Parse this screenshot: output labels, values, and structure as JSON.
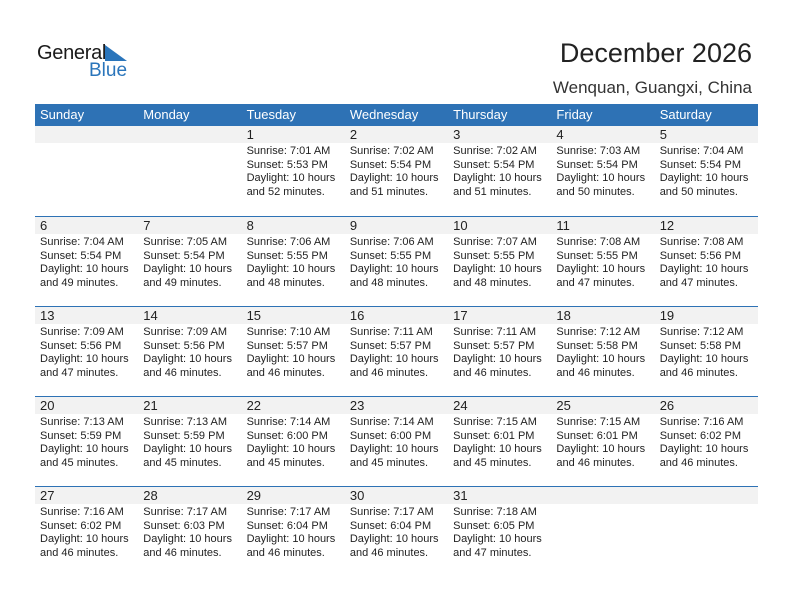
{
  "logo": {
    "line1": "General",
    "line2": "Blue"
  },
  "header": {
    "title": "December 2026",
    "location": "Wenquan, Guangxi, China"
  },
  "colors": {
    "accent": "#2e72b5",
    "band": "#f2f2f2"
  },
  "weekdays": [
    "Sunday",
    "Monday",
    "Tuesday",
    "Wednesday",
    "Thursday",
    "Friday",
    "Saturday"
  ],
  "weeks": [
    [
      null,
      null,
      {
        "day": "1",
        "sunrise": "Sunrise: 7:01 AM",
        "sunset": "Sunset: 5:53 PM",
        "daylight1": "Daylight: 10 hours",
        "daylight2": "and 52 minutes."
      },
      {
        "day": "2",
        "sunrise": "Sunrise: 7:02 AM",
        "sunset": "Sunset: 5:54 PM",
        "daylight1": "Daylight: 10 hours",
        "daylight2": "and 51 minutes."
      },
      {
        "day": "3",
        "sunrise": "Sunrise: 7:02 AM",
        "sunset": "Sunset: 5:54 PM",
        "daylight1": "Daylight: 10 hours",
        "daylight2": "and 51 minutes."
      },
      {
        "day": "4",
        "sunrise": "Sunrise: 7:03 AM",
        "sunset": "Sunset: 5:54 PM",
        "daylight1": "Daylight: 10 hours",
        "daylight2": "and 50 minutes."
      },
      {
        "day": "5",
        "sunrise": "Sunrise: 7:04 AM",
        "sunset": "Sunset: 5:54 PM",
        "daylight1": "Daylight: 10 hours",
        "daylight2": "and 50 minutes."
      }
    ],
    [
      {
        "day": "6",
        "sunrise": "Sunrise: 7:04 AM",
        "sunset": "Sunset: 5:54 PM",
        "daylight1": "Daylight: 10 hours",
        "daylight2": "and 49 minutes."
      },
      {
        "day": "7",
        "sunrise": "Sunrise: 7:05 AM",
        "sunset": "Sunset: 5:54 PM",
        "daylight1": "Daylight: 10 hours",
        "daylight2": "and 49 minutes."
      },
      {
        "day": "8",
        "sunrise": "Sunrise: 7:06 AM",
        "sunset": "Sunset: 5:55 PM",
        "daylight1": "Daylight: 10 hours",
        "daylight2": "and 48 minutes."
      },
      {
        "day": "9",
        "sunrise": "Sunrise: 7:06 AM",
        "sunset": "Sunset: 5:55 PM",
        "daylight1": "Daylight: 10 hours",
        "daylight2": "and 48 minutes."
      },
      {
        "day": "10",
        "sunrise": "Sunrise: 7:07 AM",
        "sunset": "Sunset: 5:55 PM",
        "daylight1": "Daylight: 10 hours",
        "daylight2": "and 48 minutes."
      },
      {
        "day": "11",
        "sunrise": "Sunrise: 7:08 AM",
        "sunset": "Sunset: 5:55 PM",
        "daylight1": "Daylight: 10 hours",
        "daylight2": "and 47 minutes."
      },
      {
        "day": "12",
        "sunrise": "Sunrise: 7:08 AM",
        "sunset": "Sunset: 5:56 PM",
        "daylight1": "Daylight: 10 hours",
        "daylight2": "and 47 minutes."
      }
    ],
    [
      {
        "day": "13",
        "sunrise": "Sunrise: 7:09 AM",
        "sunset": "Sunset: 5:56 PM",
        "daylight1": "Daylight: 10 hours",
        "daylight2": "and 47 minutes."
      },
      {
        "day": "14",
        "sunrise": "Sunrise: 7:09 AM",
        "sunset": "Sunset: 5:56 PM",
        "daylight1": "Daylight: 10 hours",
        "daylight2": "and 46 minutes."
      },
      {
        "day": "15",
        "sunrise": "Sunrise: 7:10 AM",
        "sunset": "Sunset: 5:57 PM",
        "daylight1": "Daylight: 10 hours",
        "daylight2": "and 46 minutes."
      },
      {
        "day": "16",
        "sunrise": "Sunrise: 7:11 AM",
        "sunset": "Sunset: 5:57 PM",
        "daylight1": "Daylight: 10 hours",
        "daylight2": "and 46 minutes."
      },
      {
        "day": "17",
        "sunrise": "Sunrise: 7:11 AM",
        "sunset": "Sunset: 5:57 PM",
        "daylight1": "Daylight: 10 hours",
        "daylight2": "and 46 minutes."
      },
      {
        "day": "18",
        "sunrise": "Sunrise: 7:12 AM",
        "sunset": "Sunset: 5:58 PM",
        "daylight1": "Daylight: 10 hours",
        "daylight2": "and 46 minutes."
      },
      {
        "day": "19",
        "sunrise": "Sunrise: 7:12 AM",
        "sunset": "Sunset: 5:58 PM",
        "daylight1": "Daylight: 10 hours",
        "daylight2": "and 46 minutes."
      }
    ],
    [
      {
        "day": "20",
        "sunrise": "Sunrise: 7:13 AM",
        "sunset": "Sunset: 5:59 PM",
        "daylight1": "Daylight: 10 hours",
        "daylight2": "and 45 minutes."
      },
      {
        "day": "21",
        "sunrise": "Sunrise: 7:13 AM",
        "sunset": "Sunset: 5:59 PM",
        "daylight1": "Daylight: 10 hours",
        "daylight2": "and 45 minutes."
      },
      {
        "day": "22",
        "sunrise": "Sunrise: 7:14 AM",
        "sunset": "Sunset: 6:00 PM",
        "daylight1": "Daylight: 10 hours",
        "daylight2": "and 45 minutes."
      },
      {
        "day": "23",
        "sunrise": "Sunrise: 7:14 AM",
        "sunset": "Sunset: 6:00 PM",
        "daylight1": "Daylight: 10 hours",
        "daylight2": "and 45 minutes."
      },
      {
        "day": "24",
        "sunrise": "Sunrise: 7:15 AM",
        "sunset": "Sunset: 6:01 PM",
        "daylight1": "Daylight: 10 hours",
        "daylight2": "and 45 minutes."
      },
      {
        "day": "25",
        "sunrise": "Sunrise: 7:15 AM",
        "sunset": "Sunset: 6:01 PM",
        "daylight1": "Daylight: 10 hours",
        "daylight2": "and 46 minutes."
      },
      {
        "day": "26",
        "sunrise": "Sunrise: 7:16 AM",
        "sunset": "Sunset: 6:02 PM",
        "daylight1": "Daylight: 10 hours",
        "daylight2": "and 46 minutes."
      }
    ],
    [
      {
        "day": "27",
        "sunrise": "Sunrise: 7:16 AM",
        "sunset": "Sunset: 6:02 PM",
        "daylight1": "Daylight: 10 hours",
        "daylight2": "and 46 minutes."
      },
      {
        "day": "28",
        "sunrise": "Sunrise: 7:17 AM",
        "sunset": "Sunset: 6:03 PM",
        "daylight1": "Daylight: 10 hours",
        "daylight2": "and 46 minutes."
      },
      {
        "day": "29",
        "sunrise": "Sunrise: 7:17 AM",
        "sunset": "Sunset: 6:04 PM",
        "daylight1": "Daylight: 10 hours",
        "daylight2": "and 46 minutes."
      },
      {
        "day": "30",
        "sunrise": "Sunrise: 7:17 AM",
        "sunset": "Sunset: 6:04 PM",
        "daylight1": "Daylight: 10 hours",
        "daylight2": "and 46 minutes."
      },
      {
        "day": "31",
        "sunrise": "Sunrise: 7:18 AM",
        "sunset": "Sunset: 6:05 PM",
        "daylight1": "Daylight: 10 hours",
        "daylight2": "and 47 minutes."
      },
      null,
      null
    ]
  ]
}
